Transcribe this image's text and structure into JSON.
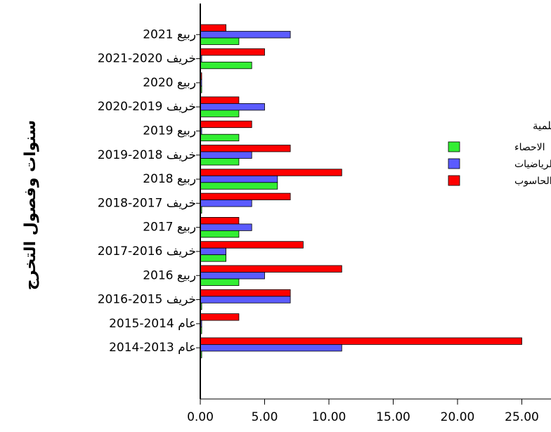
{
  "chart_data": {
    "type": "bar",
    "orientation": "horizontal",
    "ylabel": "سنوات وفصول التخرج",
    "xlabel": "",
    "xlim": [
      0,
      25.5
    ],
    "xticks": [
      "0.00",
      "5.00",
      "10.00",
      "15.00",
      "20.00",
      "25.00"
    ],
    "xtick_values": [
      0,
      5,
      10,
      15,
      20,
      25
    ],
    "grid": false,
    "legend_position": "right",
    "legend_title": "الاقسام العلمية",
    "categories": [
      "ربيع 2021",
      "خريف 2020-2021",
      "ربيع 2020",
      "خريف 2019-2020",
      "ربيع 2019",
      "خريف 2018-2019",
      "ربيع 2018",
      "خريف 2017-2018",
      "ربيع 2017",
      "خريف 2016-2017",
      "ربيع 2016",
      "خريف 2015-2016",
      "عام 2014-2015",
      "عام 2013-2014"
    ],
    "series": [
      {
        "name": "الحاسوب",
        "color": "#ff0000",
        "values": [
          2,
          5,
          0,
          3,
          4,
          7,
          11,
          7,
          3,
          8,
          11,
          7,
          3,
          25
        ]
      },
      {
        "name": "الرياضيات",
        "color": "#5b5bff",
        "values": [
          7,
          0,
          0,
          5,
          0,
          4,
          6,
          4,
          4,
          2,
          5,
          7,
          0,
          11
        ]
      },
      {
        "name": "الاحصاء",
        "color": "#33ee33",
        "values": [
          3,
          4,
          0,
          3,
          3,
          3,
          6,
          0,
          3,
          2,
          3,
          0,
          0,
          0
        ]
      }
    ],
    "legend_order": [
      "الاحصاء",
      "الرياضيات",
      "الحاسوب"
    ]
  }
}
